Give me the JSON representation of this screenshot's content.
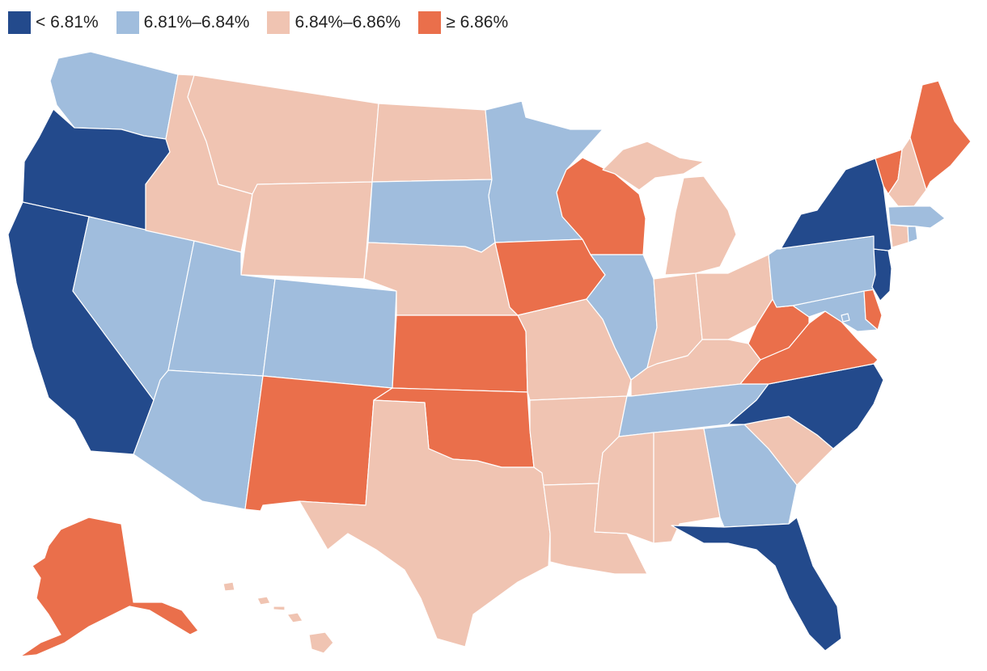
{
  "legend": [
    {
      "label": "< 6.81%",
      "bin": "b1",
      "color": "#234a8c"
    },
    {
      "label": "6.81%–6.84%",
      "bin": "b2",
      "color": "#a0bddd"
    },
    {
      "label": "6.84%–6.86%",
      "bin": "b3",
      "color": "#f0c4b2"
    },
    {
      "label": "≥ 6.86%",
      "bin": "b4",
      "color": "#ea6f4b"
    }
  ],
  "states": {
    "WA": "b2",
    "OR": "b1",
    "CA": "b1",
    "NV": "b2",
    "ID": "b3",
    "MT": "b3",
    "WY": "b3",
    "UT": "b2",
    "AZ": "b2",
    "CO": "b2",
    "NM": "b4",
    "ND": "b3",
    "SD": "b2",
    "NE": "b3",
    "KS": "b4",
    "OK": "b4",
    "TX": "b3",
    "MN": "b2",
    "IA": "b4",
    "MO": "b3",
    "AR": "b3",
    "LA": "b3",
    "WI": "b4",
    "IL": "b2",
    "MI": "b3",
    "IN": "b3",
    "OH": "b3",
    "KY": "b3",
    "TN": "b2",
    "MS": "b3",
    "AL": "b3",
    "GA": "b2",
    "FL": "b1",
    "SC": "b3",
    "NC": "b1",
    "VA": "b4",
    "WV": "b4",
    "MD": "b2",
    "DE": "b4",
    "NJ": "b1",
    "PA": "b2",
    "NY": "b1",
    "CT": "b3",
    "RI": "b2",
    "MA": "b2",
    "VT": "b4",
    "NH": "b3",
    "ME": "b4",
    "AK": "b4",
    "HI": "b3",
    "DC": "b2"
  }
}
